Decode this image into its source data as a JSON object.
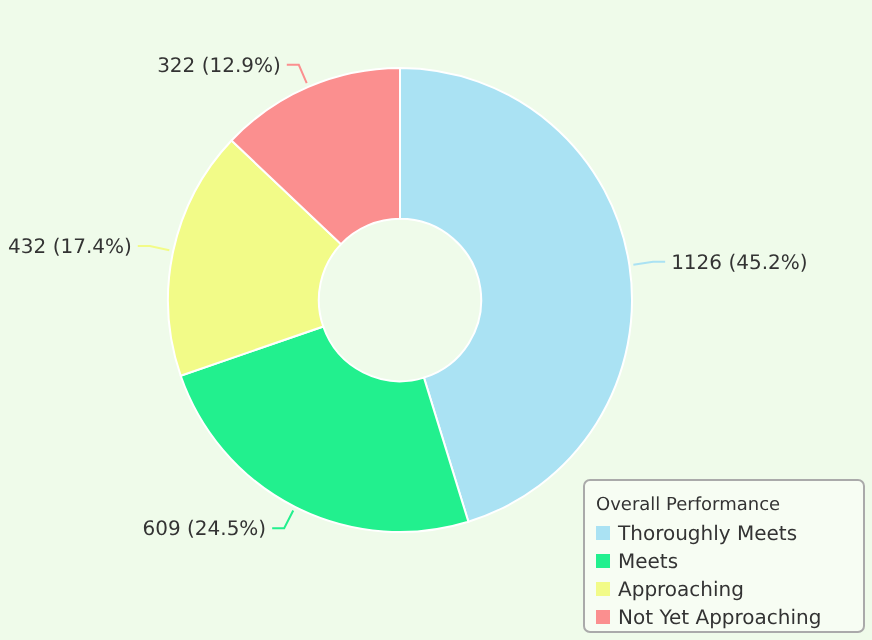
{
  "chart_data": {
    "type": "donut",
    "legend_title": "Overall Performance",
    "legend": "bottom right",
    "categories": [
      "Thoroughly Meets",
      "Meets",
      "Approaching",
      "Not Yet Approaching"
    ],
    "values": [
      1126,
      609,
      432,
      322
    ],
    "colors": [
      "#aae2f3",
      "#22f08e",
      "#f2fb88",
      "#fb8f8f"
    ],
    "value_labels": [
      "1126 (45.2%)",
      "609 (24.5%)",
      "432 (17.4%)",
      "322 (12.9%)"
    ]
  }
}
